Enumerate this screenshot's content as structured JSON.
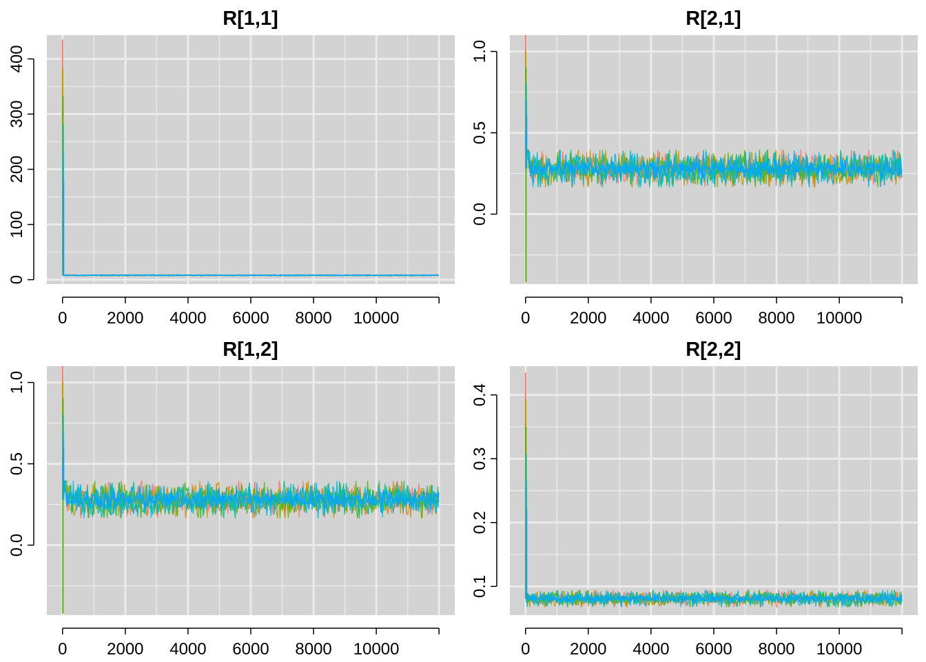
{
  "figure": {
    "background": "#ffffff",
    "panel_background": "#d3d3d3",
    "grid_color": "#ebebeb",
    "chain_colors": [
      "#f8766d",
      "#c49a00",
      "#53b400",
      "#00c094",
      "#00b6eb",
      "#06a4ff"
    ]
  },
  "chart_data": [
    {
      "type": "line",
      "title": "R[1,1]",
      "xlabel": "",
      "ylabel": "",
      "xlim": [
        -500,
        12500
      ],
      "ylim": [
        -8,
        443
      ],
      "xticks": [
        0,
        2000,
        4000,
        6000,
        8000,
        10000,
        12000
      ],
      "xtick_labels": [
        "0",
        "2000",
        "4000",
        "6000",
        "8000",
        "10000",
        ""
      ],
      "yticks": [
        0,
        100,
        200,
        300,
        400
      ],
      "ytick_labels": [
        "0",
        "100",
        "200",
        "300",
        "400"
      ],
      "grid": true,
      "series_note": "multiple MCMC chains overlaid",
      "trace": {
        "start_max": 435,
        "start_min": 8,
        "burn_end": 60,
        "level": 8,
        "band_low": 7,
        "band_high": 9,
        "x_end": 12000
      }
    },
    {
      "type": "line",
      "title": "R[2,1]",
      "xlabel": "",
      "ylabel": "",
      "xlim": [
        -500,
        12500
      ],
      "ylim": [
        -0.43,
        1.1
      ],
      "xticks": [
        0,
        2000,
        4000,
        6000,
        8000,
        10000,
        12000
      ],
      "xtick_labels": [
        "0",
        "2000",
        "4000",
        "6000",
        "8000",
        "10000",
        ""
      ],
      "yticks": [
        0.0,
        0.5,
        1.0
      ],
      "ytick_labels": [
        "0.0",
        "0.5",
        "1.0"
      ],
      "grid": true,
      "series_note": "multiple MCMC chains overlaid",
      "trace": {
        "start_max": 1.1,
        "start_min": -0.42,
        "burn_peak": 0.48,
        "burn_end": 150,
        "level": 0.28,
        "band_low": 0.22,
        "band_high": 0.34,
        "outer_low": 0.18,
        "outer_high": 0.41,
        "x_end": 12000
      }
    },
    {
      "type": "line",
      "title": "R[1,2]",
      "xlabel": "",
      "ylabel": "",
      "xlim": [
        -500,
        12500
      ],
      "ylim": [
        -0.43,
        1.1
      ],
      "xticks": [
        0,
        2000,
        4000,
        6000,
        8000,
        10000,
        12000
      ],
      "xtick_labels": [
        "0",
        "2000",
        "4000",
        "6000",
        "8000",
        "10000",
        ""
      ],
      "yticks": [
        0.0,
        0.5,
        1.0
      ],
      "ytick_labels": [
        "0.0",
        "0.5",
        "1.0"
      ],
      "grid": true,
      "series_note": "multiple MCMC chains overlaid",
      "trace": {
        "start_max": 1.1,
        "start_min": -0.42,
        "burn_peak": 0.48,
        "burn_end": 150,
        "level": 0.28,
        "band_low": 0.22,
        "band_high": 0.34,
        "outer_low": 0.18,
        "outer_high": 0.41,
        "x_end": 12000
      }
    },
    {
      "type": "line",
      "title": "R[2,2]",
      "xlabel": "",
      "ylabel": "",
      "xlim": [
        -500,
        12500
      ],
      "ylim": [
        0.055,
        0.445
      ],
      "xticks": [
        0,
        2000,
        4000,
        6000,
        8000,
        10000,
        12000
      ],
      "xtick_labels": [
        "0",
        "2000",
        "4000",
        "6000",
        "8000",
        "10000",
        ""
      ],
      "yticks": [
        0.1,
        0.2,
        0.3,
        0.4
      ],
      "ytick_labels": [
        "0.1",
        "0.2",
        "0.3",
        "0.4"
      ],
      "grid": true,
      "series_note": "multiple MCMC chains overlaid",
      "trace": {
        "start_max": 0.435,
        "start_min": 0.08,
        "burn_peak": 0.09,
        "burn_end": 60,
        "level": 0.081,
        "band_low": 0.074,
        "band_high": 0.088,
        "outer_low": 0.07,
        "outer_high": 0.097,
        "x_end": 12000
      }
    }
  ]
}
